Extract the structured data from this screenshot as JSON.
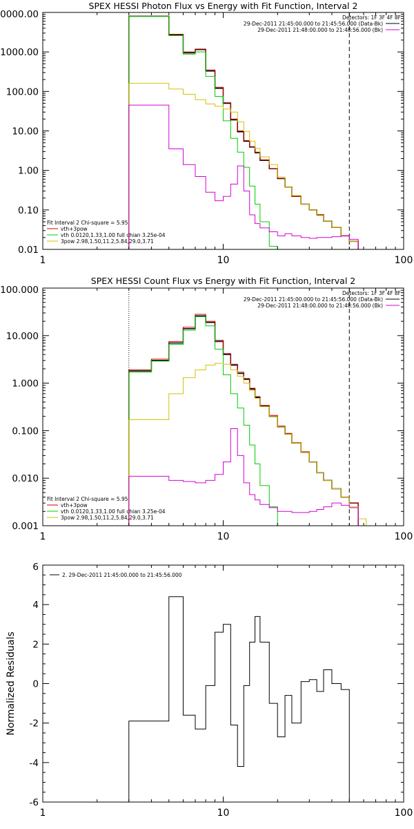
{
  "chart_data": [
    {
      "type": "line",
      "title": "SPEX HESSI Photon Flux vs Energy with Fit Function, Interval 2",
      "xscale": "log",
      "yscale": "log",
      "xlim": [
        1,
        100
      ],
      "ylim": [
        0.01,
        10000
      ],
      "xtick_labels": [
        "1",
        "10",
        "100"
      ],
      "yticks": [
        0.01,
        0.1,
        1,
        10,
        100,
        1000,
        10000
      ],
      "ytick_labels": [
        "0.01",
        "0.10",
        "1.00",
        "10.00",
        "100.00",
        "1000.00",
        "10000.00"
      ],
      "vlines": [
        {
          "x": 3,
          "style": "dotted",
          "color": "#000000"
        },
        {
          "x": 50,
          "style": "dashed",
          "color": "#000000"
        }
      ],
      "legend_top_right": {
        "header": "Detectors: 1F 3F 4F 8F",
        "lines": [
          {
            "text": "29-Dec-2011 21:45:00.000 to 21:45:56.000 (Data-Bk)",
            "color": "#000000"
          },
          {
            "text": "29-Dec-2011 21:48:00.000 to 21:48:56.000 (Bk)",
            "color": "#d400d4"
          }
        ]
      },
      "legend_bottom_left": {
        "header": "Fit Interval 2   Chi-square = 5.95",
        "lines": [
          {
            "text": "vth+3pow",
            "color": "#cc0000"
          },
          {
            "text": "vth 0.0120,1.33,1.00  full chian 3.25e-04",
            "color": "#00cc00"
          },
          {
            "text": "3pow 2.98,1.50,11.2,5.84,29.0,3.71",
            "color": "#d4c000"
          }
        ]
      },
      "bin_edges": [
        3,
        4,
        5,
        6,
        7,
        8,
        9,
        10,
        11,
        12,
        13,
        14,
        15,
        16,
        18,
        20,
        22,
        24,
        27,
        30,
        33,
        36,
        40,
        45,
        50,
        56
      ],
      "series": [
        {
          "color": "#000000",
          "width": 1.5,
          "values": [
            8000,
            8000,
            2700,
            950,
            1150,
            330,
            120,
            50,
            19,
            9.5,
            5.5,
            3.9,
            2.8,
            1.8,
            1.1,
            0.62,
            0.38,
            0.22,
            0.14,
            0.1,
            0.075,
            0.052,
            0.036,
            0.022,
            0.016,
            null
          ]
        },
        {
          "color": "#cc0000",
          "width": 1,
          "values": [
            8100,
            8100,
            2800,
            1000,
            1180,
            350,
            128,
            52,
            20,
            10,
            5.7,
            4,
            2.9,
            1.85,
            1.1,
            0.63,
            0.38,
            0.22,
            0.14,
            0.1,
            0.075,
            0.052,
            0.036,
            0.022,
            0.016,
            0.011
          ]
        },
        {
          "color": "#00cc00",
          "width": 1,
          "values": [
            8000,
            8000,
            2600,
            880,
            1000,
            240,
            75,
            18,
            6.5,
            2.9,
            1.2,
            0.4,
            0.14,
            0.05,
            0.012,
            null,
            null,
            null,
            null,
            null,
            null,
            null,
            null,
            null,
            null,
            null
          ]
        },
        {
          "color": "#d4c000",
          "width": 1,
          "values": [
            160,
            160,
            115,
            85,
            62,
            48,
            42,
            36,
            30,
            17,
            9.7,
            5.5,
            3.6,
            2.2,
            1.4,
            0.68,
            0.38,
            0.23,
            0.14,
            0.1,
            0.072,
            0.052,
            0.036,
            0.022,
            0.016,
            0.011
          ]
        },
        {
          "color": "#d400d4",
          "width": 1,
          "values": [
            45,
            45,
            3.5,
            1.4,
            0.7,
            0.28,
            0.17,
            0.22,
            0.45,
            1.3,
            0.3,
            0.075,
            0.045,
            0.035,
            0.028,
            0.022,
            0.025,
            0.022,
            0.02,
            0.019,
            0.02,
            0.02,
            0.021,
            0.022,
            0.018,
            null
          ]
        }
      ]
    },
    {
      "type": "line",
      "title": "SPEX HESSI Count Flux vs Energy with Fit Function, Interval 2",
      "xscale": "log",
      "yscale": "log",
      "xlim": [
        1,
        100
      ],
      "ylim": [
        0.001,
        100
      ],
      "xtick_labels": [
        "1",
        "10",
        "100"
      ],
      "yticks": [
        0.001,
        0.01,
        0.1,
        1,
        10,
        100
      ],
      "ytick_labels": [
        "0.001",
        "0.010",
        "0.100",
        "1.000",
        "10.000",
        "100.000"
      ],
      "vlines": [
        {
          "x": 3,
          "style": "dotted",
          "color": "#000000"
        },
        {
          "x": 50,
          "style": "dashed",
          "color": "#000000"
        }
      ],
      "legend_top_right": {
        "header": "Detectors: 1F 3F 4F 8F",
        "lines": [
          {
            "text": "29-Dec-2011 21:45:00.000 to 21:45:56.000 (Data-Bk)",
            "color": "#000000"
          },
          {
            "text": "29-Dec-2011 21:48:00.000 to 21:48:56.000 (Bk)",
            "color": "#d400d4"
          }
        ]
      },
      "legend_bottom_left": {
        "header": "Fit Interval 2   Chi-square = 5.95",
        "lines": [
          {
            "text": "vth+3pow",
            "color": "#cc0000"
          },
          {
            "text": "vth 0.0120,1.33,1.00  full chian 3.25e-04",
            "color": "#00cc00"
          },
          {
            "text": "3pow 2.98,1.50,11.2,5.84,29.0,3.71",
            "color": "#d4c000"
          }
        ]
      },
      "bin_edges": [
        3,
        4,
        5,
        6,
        7,
        8,
        9,
        10,
        11,
        12,
        13,
        14,
        15,
        16,
        18,
        20,
        22,
        24,
        27,
        30,
        33,
        36,
        40,
        45,
        50,
        56,
        62
      ],
      "series": [
        {
          "color": "#000000",
          "width": 1.5,
          "values": [
            1.8,
            3,
            7,
            14,
            26,
            19,
            7.5,
            4,
            2.4,
            1.6,
            1.2,
            0.75,
            0.5,
            0.33,
            0.2,
            0.12,
            0.085,
            0.055,
            0.035,
            0.022,
            0.013,
            0.009,
            0.006,
            0.004,
            0.003,
            null
          ]
        },
        {
          "color": "#cc0000",
          "width": 1,
          "values": [
            1.9,
            3.2,
            7.5,
            15,
            28,
            20,
            8,
            4.2,
            2.5,
            1.7,
            1.25,
            0.78,
            0.52,
            0.34,
            0.21,
            0.125,
            0.088,
            0.056,
            0.036,
            0.022,
            0.013,
            0.009,
            0.006,
            0.004,
            0.003,
            null
          ]
        },
        {
          "color": "#00cc00",
          "width": 1,
          "values": [
            1.7,
            2.9,
            6.5,
            13,
            25,
            16,
            5.2,
            1.5,
            0.6,
            0.3,
            0.13,
            0.05,
            0.02,
            0.007,
            0.0025,
            null,
            null,
            null,
            null,
            null,
            null,
            null,
            null,
            null,
            null,
            null
          ]
        },
        {
          "color": "#d4c000",
          "width": 1,
          "values": [
            0.17,
            0.17,
            0.6,
            1.3,
            1.9,
            2.4,
            2.6,
            2.5,
            1.9,
            1.4,
            1,
            0.7,
            0.48,
            0.32,
            0.2,
            0.12,
            0.085,
            0.055,
            0.035,
            0.022,
            0.013,
            0.009,
            0.006,
            0.004,
            0.0025,
            0.0014
          ]
        },
        {
          "color": "#d400d4",
          "width": 1,
          "values": [
            0.011,
            0.011,
            0.009,
            0.0085,
            0.008,
            0.009,
            0.012,
            0.022,
            0.11,
            0.03,
            0.008,
            0.0045,
            0.0035,
            0.0028,
            0.0024,
            0.002,
            0.002,
            0.0019,
            0.0019,
            0.002,
            0.0022,
            0.0025,
            0.003,
            0.0027,
            0.0024,
            null
          ]
        }
      ]
    },
    {
      "type": "line",
      "title": "",
      "xscale": "log",
      "yscale": "linear",
      "xlim": [
        1,
        100
      ],
      "ylim": [
        -6,
        6
      ],
      "xtick_labels": [
        "1",
        "10",
        "100"
      ],
      "yticks": [
        -6,
        -4,
        -2,
        0,
        2,
        4,
        6
      ],
      "ytick_labels": [
        "-6",
        "-4",
        "-2",
        "0",
        "2",
        "4",
        "6"
      ],
      "ylabel": "Normalized Residuals",
      "legend_top_left": {
        "lines": [
          {
            "text": "2. 29-Dec-2011 21:45:00.000 to 21:45:56.000",
            "color": "#000000"
          }
        ]
      },
      "bin_edges": [
        3,
        4,
        5,
        6,
        7,
        8,
        9,
        10,
        11,
        12,
        13,
        14,
        15,
        16,
        18,
        20,
        22,
        24,
        27,
        30,
        33,
        36,
        40,
        45,
        50
      ],
      "series": [
        {
          "color": "#000000",
          "width": 1,
          "values": [
            -1.9,
            -1.9,
            4.4,
            -1.6,
            -2.3,
            -0.1,
            2.6,
            3.0,
            -2.1,
            -4.2,
            -0.1,
            2.1,
            3.4,
            2.1,
            -1.0,
            -2.7,
            -0.6,
            -2.0,
            0.1,
            0.2,
            -0.4,
            0.7,
            0.0,
            -0.3
          ]
        }
      ]
    }
  ]
}
